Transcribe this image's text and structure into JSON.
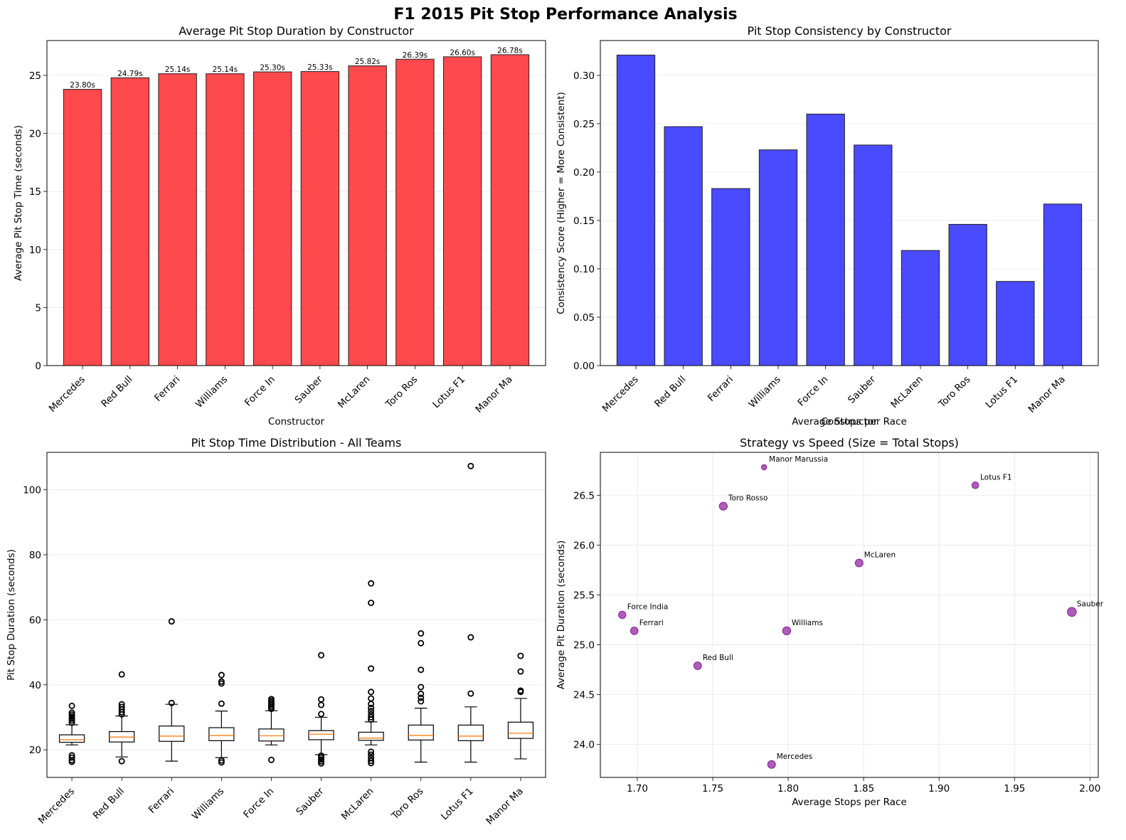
{
  "figure_title": "F1 2015 Pit Stop Performance Analysis",
  "chart_data": [
    {
      "type": "bar",
      "title": "Average Pit Stop Duration by Constructor",
      "xlabel": "Constructor",
      "ylabel": "Average Pit Stop Time (seconds)",
      "ylim": [
        0,
        28
      ],
      "yticks": [
        0,
        5,
        10,
        15,
        20,
        25
      ],
      "grid": "y",
      "color": "#ff4a4d",
      "categories": [
        "Mercedes",
        "Red Bull",
        "Ferrari",
        "Williams",
        "Force In",
        "Sauber",
        "McLaren",
        "Toro Ros",
        "Lotus F1",
        "Manor Ma"
      ],
      "values": [
        23.8,
        24.79,
        25.14,
        25.14,
        25.3,
        25.33,
        25.82,
        26.39,
        26.6,
        26.78
      ],
      "labels": [
        "23.80s",
        "24.79s",
        "25.14s",
        "25.14s",
        "25.30s",
        "25.33s",
        "25.82s",
        "26.39s",
        "26.60s",
        "26.78s"
      ]
    },
    {
      "type": "bar",
      "title": "Pit Stop Consistency by Constructor",
      "xlabel": "Constructor",
      "ylabel": "Consistency Score (Higher = More Consistent)",
      "ylim": [
        0,
        0.336
      ],
      "yticks": [
        0.0,
        0.05,
        0.1,
        0.15,
        0.2,
        0.25,
        0.3
      ],
      "ytick_labels": [
        "0.00",
        "0.05",
        "0.10",
        "0.15",
        "0.20",
        "0.25",
        "0.30"
      ],
      "grid": "y",
      "color": "#4a4aff",
      "categories": [
        "Mercedes",
        "Red Bull",
        "Ferrari",
        "Williams",
        "Force In",
        "Sauber",
        "McLaren",
        "Toro Ros",
        "Lotus F1",
        "Manor Ma"
      ],
      "values": [
        0.321,
        0.247,
        0.183,
        0.223,
        0.26,
        0.228,
        0.119,
        0.146,
        0.087,
        0.167
      ]
    },
    {
      "type": "box",
      "title": "Pit Stop Time Distribution - All Teams",
      "xlabel": "",
      "ylabel": "Pit Stop Duration (seconds)",
      "ylim": [
        11.5,
        111.5
      ],
      "yticks": [
        20,
        40,
        60,
        80,
        100
      ],
      "grid": "y",
      "categories": [
        "Mercedes",
        "Red Bull",
        "Ferrari",
        "Williams",
        "Force In",
        "Sauber",
        "McLaren",
        "Toro Ros",
        "Lotus F1",
        "Manor Ma"
      ],
      "boxes": [
        {
          "whislo": 21.5,
          "q1": 22.3,
          "med": 23.1,
          "q3": 24.6,
          "whishi": 27.7,
          "fliers": [
            16.3,
            16.8,
            17.6,
            18.3,
            28.3,
            29.0,
            29.6,
            30.2,
            30.8,
            31.4,
            33.5
          ]
        },
        {
          "whislo": 17.8,
          "q1": 22.4,
          "med": 23.9,
          "q3": 25.6,
          "whishi": 30.4,
          "fliers": [
            16.5,
            30.9,
            31.6,
            32.4,
            33.2,
            34.0,
            43.2
          ]
        },
        {
          "whislo": 16.5,
          "q1": 22.6,
          "med": 24.2,
          "q3": 27.3,
          "whishi": 34.0,
          "fliers": [
            34.4,
            59.5
          ]
        },
        {
          "whislo": 17.6,
          "q1": 22.8,
          "med": 24.4,
          "q3": 26.8,
          "whishi": 31.9,
          "fliers": [
            16.1,
            16.7,
            34.2,
            40.4,
            41.0,
            43.0
          ]
        },
        {
          "whislo": 21.5,
          "q1": 22.7,
          "med": 24.3,
          "q3": 26.4,
          "whishi": 32.0,
          "fliers": [
            16.9,
            32.6,
            33.1,
            33.6,
            34.1,
            34.6,
            35.1,
            35.6
          ]
        },
        {
          "whislo": 18.5,
          "q1": 23.1,
          "med": 24.8,
          "q3": 25.9,
          "whishi": 30.0,
          "fliers": [
            15.8,
            16.4,
            17.0,
            17.6,
            18.2,
            31.0,
            33.8,
            35.5,
            49.1
          ]
        },
        {
          "whislo": 21.5,
          "q1": 22.9,
          "med": 23.6,
          "q3": 25.4,
          "whishi": 28.6,
          "fliers": [
            15.9,
            16.6,
            17.5,
            18.5,
            19.4,
            29.3,
            30.0,
            30.9,
            31.9,
            32.9,
            34.1,
            35.8,
            37.8,
            45.0,
            65.2,
            71.2
          ]
        },
        {
          "whislo": 16.2,
          "q1": 23.0,
          "med": 24.4,
          "q3": 27.6,
          "whishi": 32.8,
          "fliers": [
            34.9,
            36.0,
            37.2,
            39.3,
            44.6,
            52.8,
            55.8
          ]
        },
        {
          "whislo": 16.2,
          "q1": 22.8,
          "med": 24.2,
          "q3": 27.6,
          "whishi": 33.2,
          "fliers": [
            37.3,
            54.6,
            107.3
          ]
        },
        {
          "whislo": 17.2,
          "q1": 23.5,
          "med": 25.1,
          "q3": 28.5,
          "whishi": 35.8,
          "fliers": [
            37.8,
            38.2,
            44.1,
            48.9
          ]
        }
      ]
    },
    {
      "type": "scatter",
      "title": "Strategy vs Speed (Size = Total Stops)",
      "xlabel": "Average Stops per Race",
      "ylabel": "Average Pit Duration (seconds)",
      "xlim": [
        1.6755,
        2.0055
      ],
      "ylim": [
        23.67,
        26.93
      ],
      "xticks": [
        1.7,
        1.75,
        1.8,
        1.85,
        1.9,
        1.95,
        2.0
      ],
      "xtick_labels": [
        "1.70",
        "1.75",
        "1.80",
        "1.85",
        "1.90",
        "1.95",
        "2.00"
      ],
      "yticks": [
        24.0,
        24.5,
        25.0,
        25.5,
        26.0,
        26.5
      ],
      "ytick_labels": [
        "24.0",
        "24.5",
        "25.0",
        "25.5",
        "26.0",
        "26.5"
      ],
      "grid": "both",
      "color": "#8b1a99",
      "points": [
        {
          "name": "Mercedes",
          "x": 1.789,
          "y": 23.8,
          "total_stops": 68
        },
        {
          "name": "Red Bull",
          "x": 1.74,
          "y": 24.79,
          "total_stops": 66
        },
        {
          "name": "Ferrari",
          "x": 1.698,
          "y": 25.14,
          "total_stops": 64
        },
        {
          "name": "Williams",
          "x": 1.799,
          "y": 25.14,
          "total_stops": 74
        },
        {
          "name": "Force India",
          "x": 1.69,
          "y": 25.3,
          "total_stops": 62
        },
        {
          "name": "Sauber",
          "x": 1.988,
          "y": 25.33,
          "total_stops": 91
        },
        {
          "name": "McLaren",
          "x": 1.847,
          "y": 25.82,
          "total_stops": 68
        },
        {
          "name": "Toro Rosso",
          "x": 1.757,
          "y": 26.39,
          "total_stops": 72
        },
        {
          "name": "Lotus F1",
          "x": 1.924,
          "y": 26.6,
          "total_stops": 52
        },
        {
          "name": "Manor Marussia",
          "x": 1.784,
          "y": 26.78,
          "total_stops": 32
        }
      ]
    }
  ]
}
